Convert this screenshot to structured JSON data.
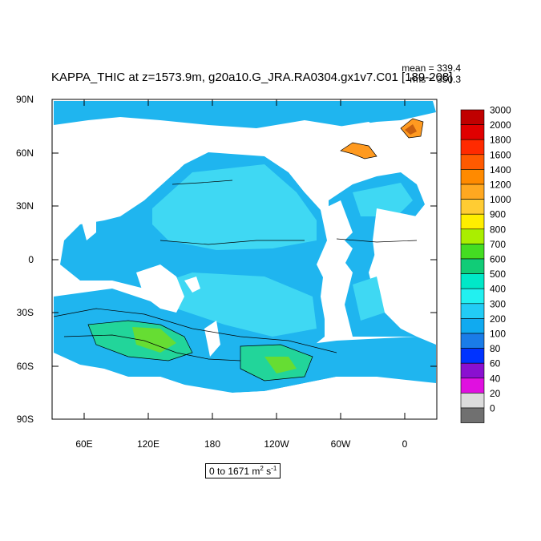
{
  "title": "KAPPA_THIC at z=1573.9m, g20a10.G_JRA.RA0304.gx1v7.C01 [189-208]",
  "stats": {
    "mean": "mean = 339.4",
    "rms": "rms = 350.3"
  },
  "range": {
    "text": "0 to 1671 m",
    "sup1": "2",
    "mid": " s",
    "sup2": "-1"
  },
  "lat_labels": [
    "90N",
    "60N",
    "30N",
    "0",
    "30S",
    "60S",
    "90S"
  ],
  "lon_labels": [
    "60E",
    "120E",
    "180",
    "120W",
    "60W",
    "0"
  ],
  "colorbar": {
    "labels": [
      "3000",
      "2000",
      "1800",
      "1600",
      "1400",
      "1200",
      "1000",
      "900",
      "800",
      "700",
      "600",
      "500",
      "400",
      "300",
      "200",
      "100",
      "80",
      "60",
      "40",
      "20",
      "0"
    ],
    "colors": [
      "#c00000",
      "#e00000",
      "#ff2a00",
      "#ff5a00",
      "#ff8a00",
      "#ffa820",
      "#ffcc33",
      "#ffee00",
      "#aaee00",
      "#44dd22",
      "#11cc77",
      "#00e8c8",
      "#22f0f0",
      "#22ccf5",
      "#10aaf0",
      "#1a7ce8",
      "#0033ff",
      "#8a10d0",
      "#e010e0",
      "#dcdcdc",
      "#707070"
    ]
  }
}
